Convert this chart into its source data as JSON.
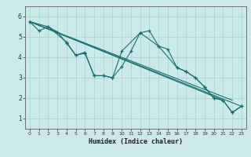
{
  "xlabel": "Humidex (Indice chaleur)",
  "ylabel": "",
  "background_color": "#cce9e9",
  "grid_color": "#a8d0d0",
  "line_color": "#1a7070",
  "xlim": [
    -0.5,
    23.5
  ],
  "ylim": [
    0.5,
    6.5
  ],
  "yticks": [
    1,
    2,
    3,
    4,
    5,
    6
  ],
  "xticks": [
    0,
    1,
    2,
    3,
    4,
    5,
    6,
    7,
    8,
    9,
    10,
    11,
    12,
    13,
    14,
    15,
    16,
    17,
    18,
    19,
    20,
    21,
    22,
    23
  ],
  "series": [
    {
      "x": [
        0,
        1,
        2,
        3,
        4,
        5,
        6,
        7,
        8,
        9,
        10,
        11,
        12,
        13,
        14,
        15,
        16,
        17,
        18,
        19,
        20,
        21,
        22,
        23
      ],
      "y": [
        5.75,
        5.3,
        5.5,
        5.25,
        4.7,
        4.1,
        4.2,
        3.1,
        3.1,
        3.0,
        3.55,
        4.3,
        5.2,
        5.3,
        4.55,
        4.4,
        3.5,
        3.3,
        3.0,
        2.55,
        2.0,
        1.9,
        1.3,
        1.6
      ],
      "has_marker": true
    },
    {
      "x": [
        0,
        2,
        4,
        5,
        6,
        7,
        8,
        9,
        10,
        12,
        14,
        16,
        17,
        18,
        19,
        20,
        21,
        22,
        23
      ],
      "y": [
        5.75,
        5.5,
        4.75,
        4.1,
        4.25,
        3.1,
        3.1,
        3.0,
        4.3,
        5.2,
        4.55,
        3.5,
        3.3,
        3.0,
        2.55,
        2.0,
        1.9,
        1.3,
        1.6
      ],
      "has_marker": true
    },
    {
      "x": [
        0,
        21
      ],
      "y": [
        5.75,
        1.9
      ],
      "has_marker": false
    },
    {
      "x": [
        0,
        22
      ],
      "y": [
        5.75,
        1.9
      ],
      "has_marker": false
    },
    {
      "x": [
        0,
        23
      ],
      "y": [
        5.75,
        1.6
      ],
      "has_marker": false
    }
  ]
}
